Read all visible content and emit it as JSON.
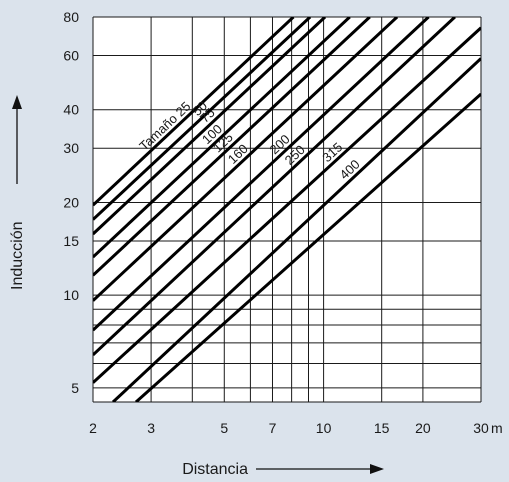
{
  "chart_data": {
    "type": "line",
    "xlabel": "Distancia",
    "ylabel": "Inducción",
    "x_unit": "m",
    "x_scale": "log",
    "y_scale": "log",
    "xlim": [
      2,
      30
    ],
    "ylim": [
      4.5,
      80
    ],
    "grid": true,
    "x_ticks": [
      2,
      3,
      5,
      7,
      10,
      15,
      20,
      30
    ],
    "y_ticks": [
      5,
      10,
      15,
      20,
      30,
      40,
      60,
      80
    ],
    "x_gridlines": [
      2,
      3,
      4,
      5,
      6,
      7,
      8,
      9,
      10,
      15,
      20,
      30
    ],
    "y_gridlines": [
      4.5,
      5,
      6,
      7,
      8,
      9,
      10,
      15,
      20,
      30,
      40,
      60,
      80
    ],
    "series": [
      {
        "name": "Tamaño 25",
        "points": [
          [
            2,
            19.6
          ],
          [
            8.1,
            80
          ]
        ]
      },
      {
        "name": "50",
        "points": [
          [
            2,
            17.6
          ],
          [
            9.1,
            80
          ]
        ]
      },
      {
        "name": "75",
        "points": [
          [
            2,
            15.8
          ],
          [
            10.1,
            80
          ]
        ]
      },
      {
        "name": "100",
        "points": [
          [
            2,
            13.3
          ],
          [
            12.0,
            80
          ]
        ]
      },
      {
        "name": "125",
        "points": [
          [
            2,
            11.6
          ],
          [
            13.8,
            80
          ]
        ]
      },
      {
        "name": "160",
        "points": [
          [
            2,
            9.6
          ],
          [
            16.7,
            80
          ]
        ]
      },
      {
        "name": "200",
        "points": [
          [
            2,
            7.7
          ],
          [
            20.8,
            80
          ]
        ]
      },
      {
        "name": "250",
        "points": [
          [
            2,
            6.4
          ],
          [
            25.0,
            80
          ]
        ]
      },
      {
        "name": "315",
        "points": [
          [
            2,
            5.2
          ],
          [
            30,
            73.8
          ]
        ]
      },
      {
        "name": "400",
        "points": [
          [
            2.3,
            4.5
          ],
          [
            30,
            58.7
          ]
        ]
      },
      {
        "name": "",
        "points": [
          [
            2.7,
            4.5
          ],
          [
            30,
            45.0
          ]
        ]
      }
    ]
  },
  "colors": {
    "background": "#dbe3ec",
    "plot_background": "#ffffff",
    "grid": "#1a1a1a",
    "series": "#000000"
  }
}
